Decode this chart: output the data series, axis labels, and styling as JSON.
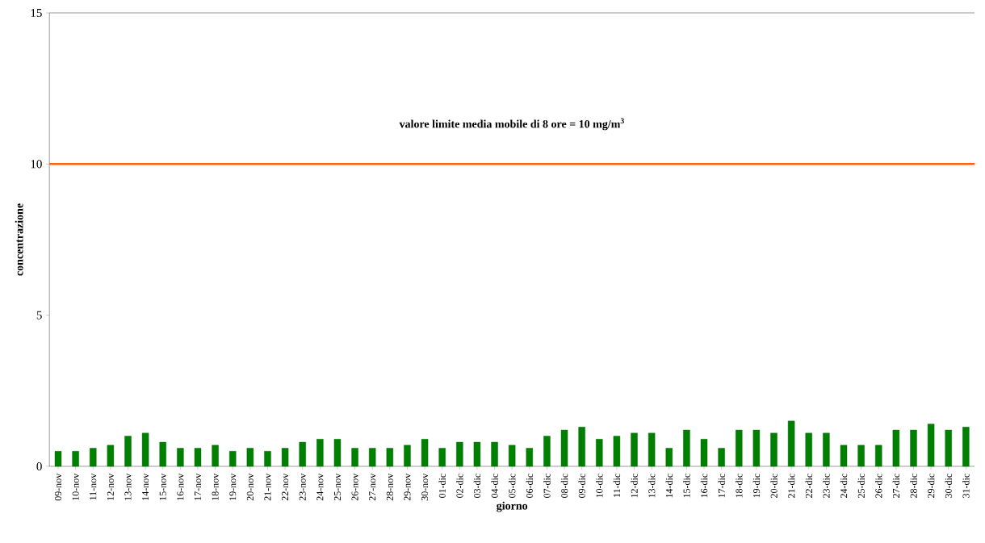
{
  "chart_data": {
    "type": "bar",
    "xlabel": "giorno",
    "ylabel": "concentrazione",
    "categories": [
      "09-nov",
      "10-nov",
      "11-nov",
      "12-nov",
      "13-nov",
      "14-nov",
      "15-nov",
      "16-nov",
      "17-nov",
      "18-nov",
      "19-nov",
      "20-nov",
      "21-nov",
      "22-nov",
      "23-nov",
      "24-nov",
      "25-nov",
      "26-nov",
      "27-nov",
      "28-nov",
      "29-nov",
      "30-nov",
      "01-dic",
      "02-dic",
      "03-dic",
      "04-dic",
      "05-dic",
      "06-dic",
      "07-dic",
      "08-dic",
      "09-dic",
      "10-dic",
      "11-dic",
      "12-dic",
      "13-dic",
      "14-dic",
      "15-dic",
      "16-dic",
      "17-dic",
      "18-dic",
      "19-dic",
      "20-dic",
      "21-dic",
      "22-dic",
      "23-dic",
      "24-dic",
      "25-dic",
      "26-dic",
      "27-dic",
      "28-dic",
      "29-dic",
      "30-dic",
      "31-dic"
    ],
    "values": [
      0.5,
      0.5,
      0.6,
      0.7,
      1.0,
      1.1,
      0.8,
      0.6,
      0.6,
      0.7,
      0.5,
      0.6,
      0.5,
      0.6,
      0.8,
      0.9,
      0.9,
      0.6,
      0.6,
      0.6,
      0.7,
      0.9,
      0.6,
      0.8,
      0.8,
      0.8,
      0.7,
      0.6,
      1.0,
      1.2,
      1.3,
      0.9,
      1.0,
      1.1,
      1.1,
      0.6,
      1.2,
      0.9,
      0.6,
      1.2,
      1.2,
      1.1,
      1.5,
      1.1,
      1.1,
      0.7,
      0.7,
      0.7,
      1.2,
      1.2,
      1.4,
      1.2,
      1.3
    ],
    "color": "#008000",
    "ylim": [
      0,
      15
    ],
    "yticks": [
      0,
      5,
      10,
      15
    ],
    "grid": false,
    "ref_lines": [
      {
        "axis": "y",
        "value": 10,
        "label": "valore limite media mobile di 8 ore = 10 mg/m$^{3}$",
        "color": "#ff6600"
      }
    ]
  }
}
